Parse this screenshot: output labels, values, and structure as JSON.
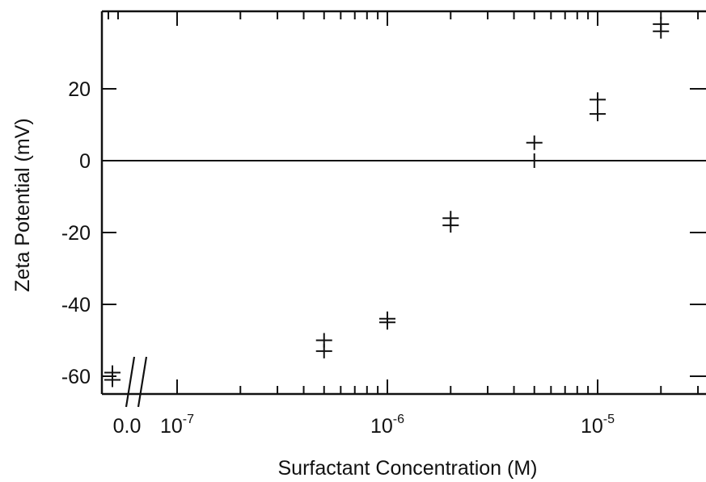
{
  "chart_data": {
    "type": "scatter",
    "title": "",
    "xlabel": "Surfactant Concentration (M)",
    "ylabel": "Zeta Potential (mV)",
    "xscale": "log",
    "x_axis_break": true,
    "xlim": [
      1e-07,
      3e-05
    ],
    "ylim": [
      -64,
      40
    ],
    "grid": false,
    "legend": "none",
    "zero_line": 0,
    "marker": "plus",
    "marker_color": "#111111",
    "x_tick_labels": [
      {
        "base": "0.0",
        "exp": ""
      },
      {
        "base": "10",
        "exp": "-7"
      },
      {
        "base": "10",
        "exp": "-6"
      },
      {
        "base": "10",
        "exp": "-5"
      }
    ],
    "y_ticks": [
      -60,
      -40,
      -20,
      0,
      20
    ],
    "y_tick_labels": [
      "-60",
      "-40",
      "-20",
      "0",
      "20"
    ],
    "points": [
      {
        "x": 0,
        "y": -59
      },
      {
        "x": 0,
        "y": -61
      },
      {
        "x": 5e-07,
        "y": -50
      },
      {
        "x": 5e-07,
        "y": -53
      },
      {
        "x": 1e-06,
        "y": -44
      },
      {
        "x": 1e-06,
        "y": -45
      },
      {
        "x": 2e-06,
        "y": -16
      },
      {
        "x": 2e-06,
        "y": -18
      },
      {
        "x": 5e-06,
        "y": 5
      },
      {
        "x": 5e-06,
        "y": 0
      },
      {
        "x": 1e-05,
        "y": 17
      },
      {
        "x": 1e-05,
        "y": 13
      },
      {
        "x": 2e-05,
        "y": 38
      },
      {
        "x": 2e-05,
        "y": 36
      }
    ]
  }
}
